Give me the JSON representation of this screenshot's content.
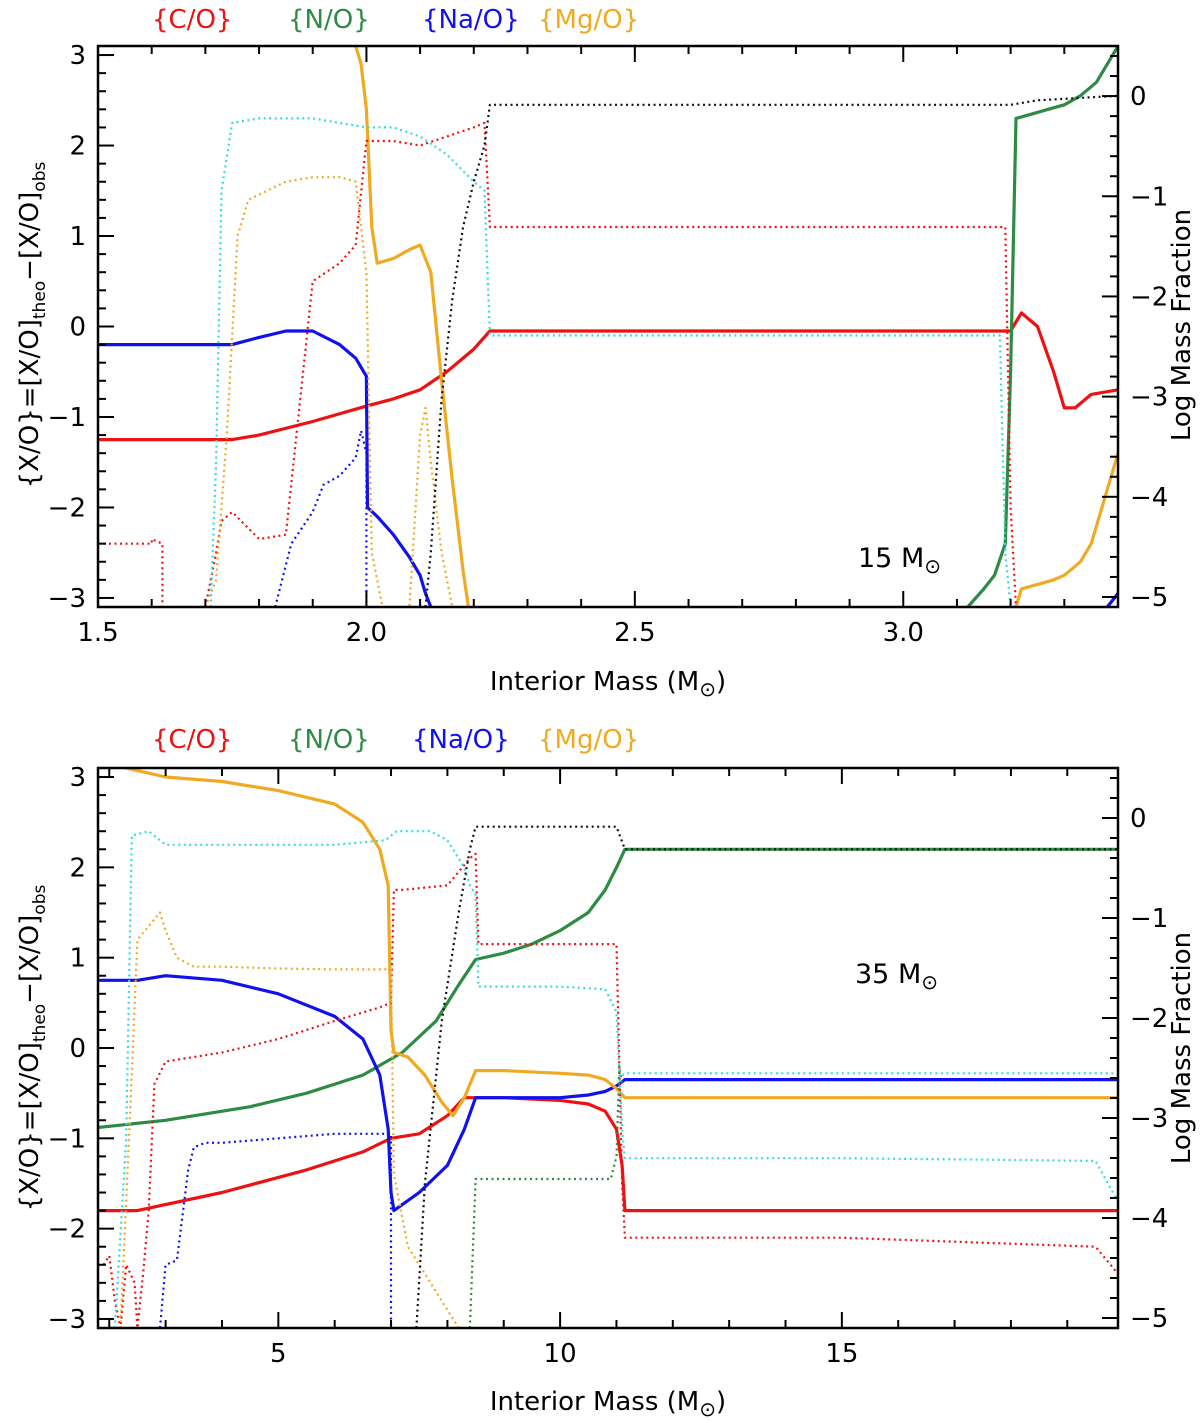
{
  "colors": {
    "C/O": "#ee1111",
    "N/O": "#2e8b44",
    "Na/O": "#1111ee",
    "Mg/O": "#f0aa22",
    "cyan": "#33dddd",
    "black": "#111111"
  },
  "chart_data": [
    {
      "type": "line",
      "annotation": {
        "text": "15",
        "unit": "M",
        "sun": "⊙"
      },
      "legend": [
        "{C/O}",
        "{N/O}",
        "{Na/O}",
        "{Mg/O}"
      ],
      "xlabel": {
        "text": "Interior Mass (M",
        "sun": "⊙",
        "close": ")"
      },
      "ylabel": "{X/O}=[X/O]theo−[X/O]obs",
      "ylabel_right": "Log Mass Fraction",
      "xlim": [
        1.5,
        3.4
      ],
      "ylim": [
        -3.1,
        3.1
      ],
      "ylim_right": [
        -5.1,
        0.5
      ],
      "xticks": [
        1.5,
        2.0,
        2.5,
        3.0
      ],
      "xtick_labels": [
        "1.5",
        "2.0",
        "2.5",
        "3.0"
      ],
      "yticks": [
        -3,
        -2,
        -1,
        0,
        1,
        2,
        3
      ],
      "ytick_labels": [
        "−3",
        "−2",
        "−1",
        "0",
        "1",
        "2",
        "3"
      ],
      "yticks_right": [
        -5,
        -4,
        -3,
        -2,
        -1,
        0
      ],
      "ytick_labels_right": [
        "−5",
        "−4",
        "−3",
        "−2",
        "−1",
        "0"
      ],
      "series": [
        {
          "name": "{C/O}",
          "color": "C/O",
          "style": "solid",
          "x": [
            1.5,
            1.75,
            1.8,
            1.9,
            2.0,
            2.05,
            2.1,
            2.15,
            2.2,
            2.23,
            2.5,
            3.0,
            3.19,
            3.2,
            3.22,
            3.25,
            3.28,
            3.3,
            3.32,
            3.35,
            3.4
          ],
          "y": [
            -1.25,
            -1.25,
            -1.2,
            -1.05,
            -0.88,
            -0.8,
            -0.7,
            -0.5,
            -0.25,
            -0.05,
            -0.05,
            -0.05,
            -0.05,
            -0.05,
            0.15,
            0.0,
            -0.5,
            -0.9,
            -0.9,
            -0.75,
            -0.7
          ]
        },
        {
          "name": "{N/O}",
          "color": "N/O",
          "style": "solid",
          "x": [
            3.12,
            3.15,
            3.17,
            3.19,
            3.2,
            3.21,
            3.24,
            3.27,
            3.3,
            3.33,
            3.36,
            3.38,
            3.4
          ],
          "y": [
            -3.1,
            -2.9,
            -2.75,
            -2.4,
            -0.5,
            2.3,
            2.35,
            2.4,
            2.45,
            2.55,
            2.7,
            2.9,
            3.1
          ]
        },
        {
          "name": "{Na/O}",
          "color": "Na/O",
          "style": "solid",
          "x": [
            1.5,
            1.75,
            1.8,
            1.85,
            1.9,
            1.95,
            1.98,
            2.0,
            2.002,
            2.02,
            2.05,
            2.08,
            2.1,
            2.11,
            2.12
          ],
          "y": [
            -0.2,
            -0.2,
            -0.12,
            -0.05,
            -0.05,
            -0.2,
            -0.35,
            -0.55,
            -2.0,
            -2.1,
            -2.3,
            -2.55,
            -2.75,
            -2.95,
            -3.1
          ]
        },
        {
          "name": "{Mg/O}",
          "color": "Mg/O",
          "style": "solid",
          "x": [
            1.98,
            1.99,
            2.0,
            2.01,
            2.02,
            2.05,
            2.08,
            2.1,
            2.12,
            2.14,
            2.16,
            2.18,
            2.19
          ],
          "y": [
            3.1,
            2.9,
            2.4,
            1.1,
            0.7,
            0.75,
            0.85,
            0.9,
            0.6,
            -0.6,
            -1.7,
            -2.7,
            -3.1
          ]
        },
        {
          "name": "{Mg/O} outer",
          "color": "Mg/O",
          "style": "solid",
          "x": [
            3.21,
            3.22,
            3.25,
            3.28,
            3.3,
            3.33,
            3.35,
            3.38,
            3.4
          ],
          "y": [
            -3.1,
            -2.9,
            -2.85,
            -2.8,
            -2.75,
            -2.6,
            -2.4,
            -1.8,
            -1.4
          ]
        },
        {
          "name": "{Na/O} outer",
          "color": "Na/O",
          "style": "solid",
          "x": [
            3.38,
            3.4
          ],
          "y": [
            -3.1,
            -2.95
          ]
        },
        {
          "name": "{C/O} dotted",
          "color": "C/O",
          "style": "dotted",
          "x": [
            1.5,
            1.52,
            1.6,
            1.6,
            1.62,
            1.62,
            1.7,
            1.72,
            1.73,
            1.75,
            1.8,
            1.85,
            1.9,
            1.95,
            1.98,
            2.0,
            2.05,
            2.1,
            2.15,
            2.2,
            2.22,
            2.23,
            2.5,
            3.19,
            3.2,
            3.21
          ],
          "y": [
            -2.4,
            -2.4,
            -2.4,
            -2.35,
            -2.4,
            -3.1,
            -3.1,
            -2.5,
            -2.15,
            -2.05,
            -2.35,
            -2.3,
            0.5,
            0.7,
            0.9,
            2.05,
            2.05,
            2.0,
            2.1,
            2.2,
            2.25,
            1.1,
            1.1,
            1.1,
            -2.0,
            -3.1
          ]
        },
        {
          "name": "{Na/O} dotted",
          "color": "Na/O",
          "style": "dotted",
          "x": [
            1.83,
            1.86,
            1.9,
            1.92,
            1.95,
            1.98,
            1.99,
            2.0,
            2.0
          ],
          "y": [
            -3.1,
            -2.4,
            -2.05,
            -1.75,
            -1.65,
            -1.45,
            -1.15,
            -1.4,
            -3.1
          ]
        },
        {
          "name": "{Mg/O} dotted",
          "color": "Mg/O",
          "style": "dotted",
          "x": [
            1.7,
            1.72,
            1.74,
            1.76,
            1.78,
            1.85,
            1.9,
            1.95,
            1.98,
            2.0,
            2.01,
            2.03,
            2.05,
            2.08,
            2.1,
            2.11,
            2.12,
            2.14,
            2.16,
            2.18
          ],
          "y": [
            -3.1,
            -2.8,
            -1.2,
            1.0,
            1.4,
            1.6,
            1.65,
            1.65,
            1.6,
            0.6,
            -2.5,
            -3.1,
            -3.1,
            -3.1,
            -1.2,
            -0.9,
            -1.5,
            -2.5,
            -3.1,
            -3.1
          ]
        },
        {
          "name": "cyan dotted",
          "color": "cyan",
          "style": "dotted",
          "x": [
            1.71,
            1.72,
            1.73,
            1.75,
            1.8,
            1.9,
            1.95,
            2.0,
            2.05,
            2.1,
            2.15,
            2.2,
            2.22,
            2.23,
            2.5,
            3.18,
            3.19,
            3.2
          ],
          "y": [
            -3.1,
            -1.5,
            1.5,
            2.25,
            2.3,
            2.3,
            2.25,
            2.2,
            2.2,
            2.1,
            1.9,
            1.6,
            1.5,
            -0.1,
            -0.1,
            -0.1,
            -2.5,
            -3.1
          ]
        },
        {
          "name": "black dotted",
          "color": "black",
          "style": "dotted",
          "x": [
            2.11,
            2.12,
            2.14,
            2.16,
            2.18,
            2.2,
            2.22,
            2.23,
            2.5,
            3.0,
            3.2,
            3.25,
            3.4
          ],
          "y": [
            -3.1,
            -2.5,
            -0.8,
            0.3,
            1.1,
            1.6,
            2.0,
            2.45,
            2.45,
            2.45,
            2.45,
            2.5,
            2.55
          ]
        }
      ]
    },
    {
      "type": "line",
      "annotation": {
        "text": "35",
        "unit": "M",
        "sun": "⊙"
      },
      "legend": [
        "{C/O}",
        "{N/O}",
        "{Na/O}",
        "{Mg/O}"
      ],
      "xlabel": {
        "text": "Interior Mass (M",
        "sun": "⊙",
        "close": ")"
      },
      "ylabel": "{X/O}=[X/O]theo−[X/O]obs",
      "ylabel_right": "Log Mass Fraction",
      "xlim": [
        1.8,
        19.9
      ],
      "ylim": [
        -3.1,
        3.1
      ],
      "ylim_right": [
        -5.1,
        0.5
      ],
      "xticks": [
        5,
        10,
        15
      ],
      "xtick_labels": [
        "5",
        "10",
        "15"
      ],
      "yticks": [
        -3,
        -2,
        -1,
        0,
        1,
        2,
        3
      ],
      "ytick_labels": [
        "−3",
        "−2",
        "−1",
        "0",
        "1",
        "2",
        "3"
      ],
      "yticks_right": [
        -5,
        -4,
        -3,
        -2,
        -1,
        0
      ],
      "ytick_labels_right": [
        "−5",
        "−4",
        "−3",
        "−2",
        "−1",
        "0"
      ],
      "series": [
        {
          "name": "{C/O}",
          "color": "C/O",
          "style": "solid",
          "x": [
            1.8,
            2.5,
            4.0,
            5.5,
            6.5,
            7.0,
            7.5,
            8.0,
            8.3,
            8.5,
            9.0,
            10.0,
            10.5,
            10.8,
            11.0,
            11.1,
            11.15,
            15.0,
            19.9
          ],
          "y": [
            -1.8,
            -1.8,
            -1.6,
            -1.35,
            -1.15,
            -1.0,
            -0.95,
            -0.75,
            -0.55,
            -0.55,
            -0.55,
            -0.58,
            -0.62,
            -0.7,
            -0.9,
            -1.3,
            -1.8,
            -1.8,
            -1.8
          ]
        },
        {
          "name": "{N/O}",
          "color": "N/O",
          "style": "solid",
          "x": [
            1.8,
            3.0,
            4.5,
            5.5,
            6.5,
            7.2,
            7.8,
            8.2,
            8.5,
            9.0,
            9.5,
            10.0,
            10.5,
            10.8,
            11.0,
            11.15,
            15.0,
            19.9
          ],
          "y": [
            -0.88,
            -0.8,
            -0.65,
            -0.5,
            -0.3,
            -0.05,
            0.3,
            0.7,
            0.98,
            1.05,
            1.15,
            1.3,
            1.5,
            1.75,
            2.0,
            2.2,
            2.2,
            2.2
          ]
        },
        {
          "name": "{Na/O}",
          "color": "Na/O",
          "style": "solid",
          "x": [
            1.8,
            2.5,
            3.0,
            4.0,
            5.0,
            6.0,
            6.5,
            6.8,
            6.95,
            7.0,
            7.05,
            7.5,
            8.0,
            8.3,
            8.5,
            9.0,
            10.0,
            10.5,
            10.8,
            11.0,
            11.15,
            15.0,
            19.9
          ],
          "y": [
            0.75,
            0.75,
            0.8,
            0.75,
            0.6,
            0.35,
            0.1,
            -0.3,
            -0.9,
            -1.6,
            -1.8,
            -1.6,
            -1.3,
            -0.9,
            -0.55,
            -0.55,
            -0.55,
            -0.52,
            -0.48,
            -0.42,
            -0.35,
            -0.35,
            -0.35
          ]
        },
        {
          "name": "{Mg/O}",
          "color": "Mg/O",
          "style": "solid",
          "x": [
            2.3,
            3.0,
            4.0,
            5.0,
            6.0,
            6.5,
            6.8,
            6.95,
            7.0,
            7.05,
            7.3,
            7.6,
            7.9,
            8.1,
            8.3,
            8.5,
            9.0,
            10.0,
            10.5,
            10.8,
            11.0,
            11.15,
            15.0,
            19.9
          ],
          "y": [
            3.1,
            3.0,
            2.95,
            2.85,
            2.7,
            2.5,
            2.2,
            1.8,
            0.2,
            -0.05,
            -0.1,
            -0.3,
            -0.6,
            -0.75,
            -0.55,
            -0.25,
            -0.25,
            -0.28,
            -0.3,
            -0.35,
            -0.45,
            -0.55,
            -0.55,
            -0.55
          ]
        },
        {
          "name": "{C/O} dotted",
          "color": "C/O",
          "style": "dotted",
          "x": [
            1.9,
            2.0,
            2.1,
            2.2,
            2.3,
            2.45,
            2.5,
            2.6,
            2.7,
            2.8,
            3.0,
            4.0,
            5.0,
            6.0,
            6.8,
            7.0,
            7.05,
            7.2,
            8.0,
            8.4,
            8.5,
            8.55,
            10.0,
            11.0,
            11.1,
            11.15,
            15.0,
            19.5,
            19.9
          ],
          "y": [
            -2.4,
            -2.3,
            -2.8,
            -3.1,
            -2.4,
            -2.6,
            -3.1,
            -2.5,
            -1.8,
            -0.4,
            -0.15,
            -0.05,
            0.1,
            0.3,
            0.45,
            0.5,
            1.75,
            1.75,
            1.8,
            2.1,
            2.15,
            1.15,
            1.15,
            1.15,
            -1.5,
            -2.1,
            -2.1,
            -2.2,
            -2.5
          ]
        },
        {
          "name": "{Na/O} dotted",
          "color": "Na/O",
          "style": "dotted",
          "x": [
            2.9,
            3.0,
            3.2,
            3.4,
            3.5,
            3.7,
            4.0,
            5.0,
            6.0,
            6.8,
            7.0,
            7.0
          ],
          "y": [
            -3.1,
            -2.4,
            -2.35,
            -1.35,
            -1.1,
            -1.05,
            -1.05,
            -1.0,
            -0.95,
            -0.95,
            -0.95,
            -3.1
          ]
        },
        {
          "name": "{Mg/O} dotted",
          "color": "Mg/O",
          "style": "dotted",
          "x": [
            2.2,
            2.35,
            2.5,
            2.7,
            2.9,
            3.0,
            3.2,
            3.5,
            4.0,
            5.0,
            6.0,
            6.8,
            7.0,
            7.05,
            7.3,
            7.6,
            7.8,
            8.0,
            8.2
          ],
          "y": [
            -3.1,
            -1.0,
            1.2,
            1.35,
            1.5,
            1.3,
            1.0,
            0.9,
            0.9,
            0.88,
            0.87,
            0.87,
            0.87,
            -1.4,
            -2.2,
            -2.5,
            -2.7,
            -2.9,
            -3.1
          ]
        },
        {
          "name": "{N/O} dotted",
          "color": "N/O",
          "style": "dotted",
          "x": [
            8.4,
            8.5,
            8.55,
            10.0,
            10.9,
            11.0,
            11.05,
            11.1
          ],
          "y": [
            -3.1,
            -1.45,
            -1.45,
            -1.45,
            -1.45,
            -1.2,
            -0.2,
            -0.4
          ]
        },
        {
          "name": "cyan dotted",
          "color": "cyan",
          "style": "dotted",
          "x": [
            2.1,
            2.3,
            2.4,
            2.7,
            2.9,
            3.0,
            4.0,
            5.0,
            6.0,
            6.9,
            7.0,
            7.1,
            7.3,
            7.7,
            8.0,
            8.3,
            8.4,
            8.5,
            8.55,
            10.0,
            10.8,
            11.0,
            11.1,
            11.15,
            15.0,
            19.5,
            19.9
          ],
          "y": [
            -3.1,
            -1.0,
            2.35,
            2.4,
            2.3,
            2.25,
            2.25,
            2.25,
            2.25,
            2.3,
            2.35,
            2.4,
            2.4,
            2.4,
            2.3,
            2.0,
            1.8,
            1.7,
            0.68,
            0.68,
            0.65,
            0.4,
            -0.9,
            -1.22,
            -1.22,
            -1.25,
            -1.7
          ]
        },
        {
          "name": "cyan dotted upper",
          "color": "cyan",
          "style": "dotted",
          "x": [
            11.1,
            11.2,
            15.0,
            19.9
          ],
          "y": [
            -0.3,
            -0.28,
            -0.28,
            -0.28
          ]
        },
        {
          "name": "black dotted",
          "color": "black",
          "style": "dotted",
          "x": [
            7.45,
            7.6,
            7.9,
            8.2,
            8.4,
            8.5,
            8.6,
            10.0,
            11.0,
            11.15,
            15.0,
            19.9
          ],
          "y": [
            -3.1,
            -1.5,
            0.3,
            1.5,
            2.2,
            2.45,
            2.45,
            2.45,
            2.45,
            2.2,
            2.2,
            2.2
          ]
        }
      ]
    }
  ]
}
